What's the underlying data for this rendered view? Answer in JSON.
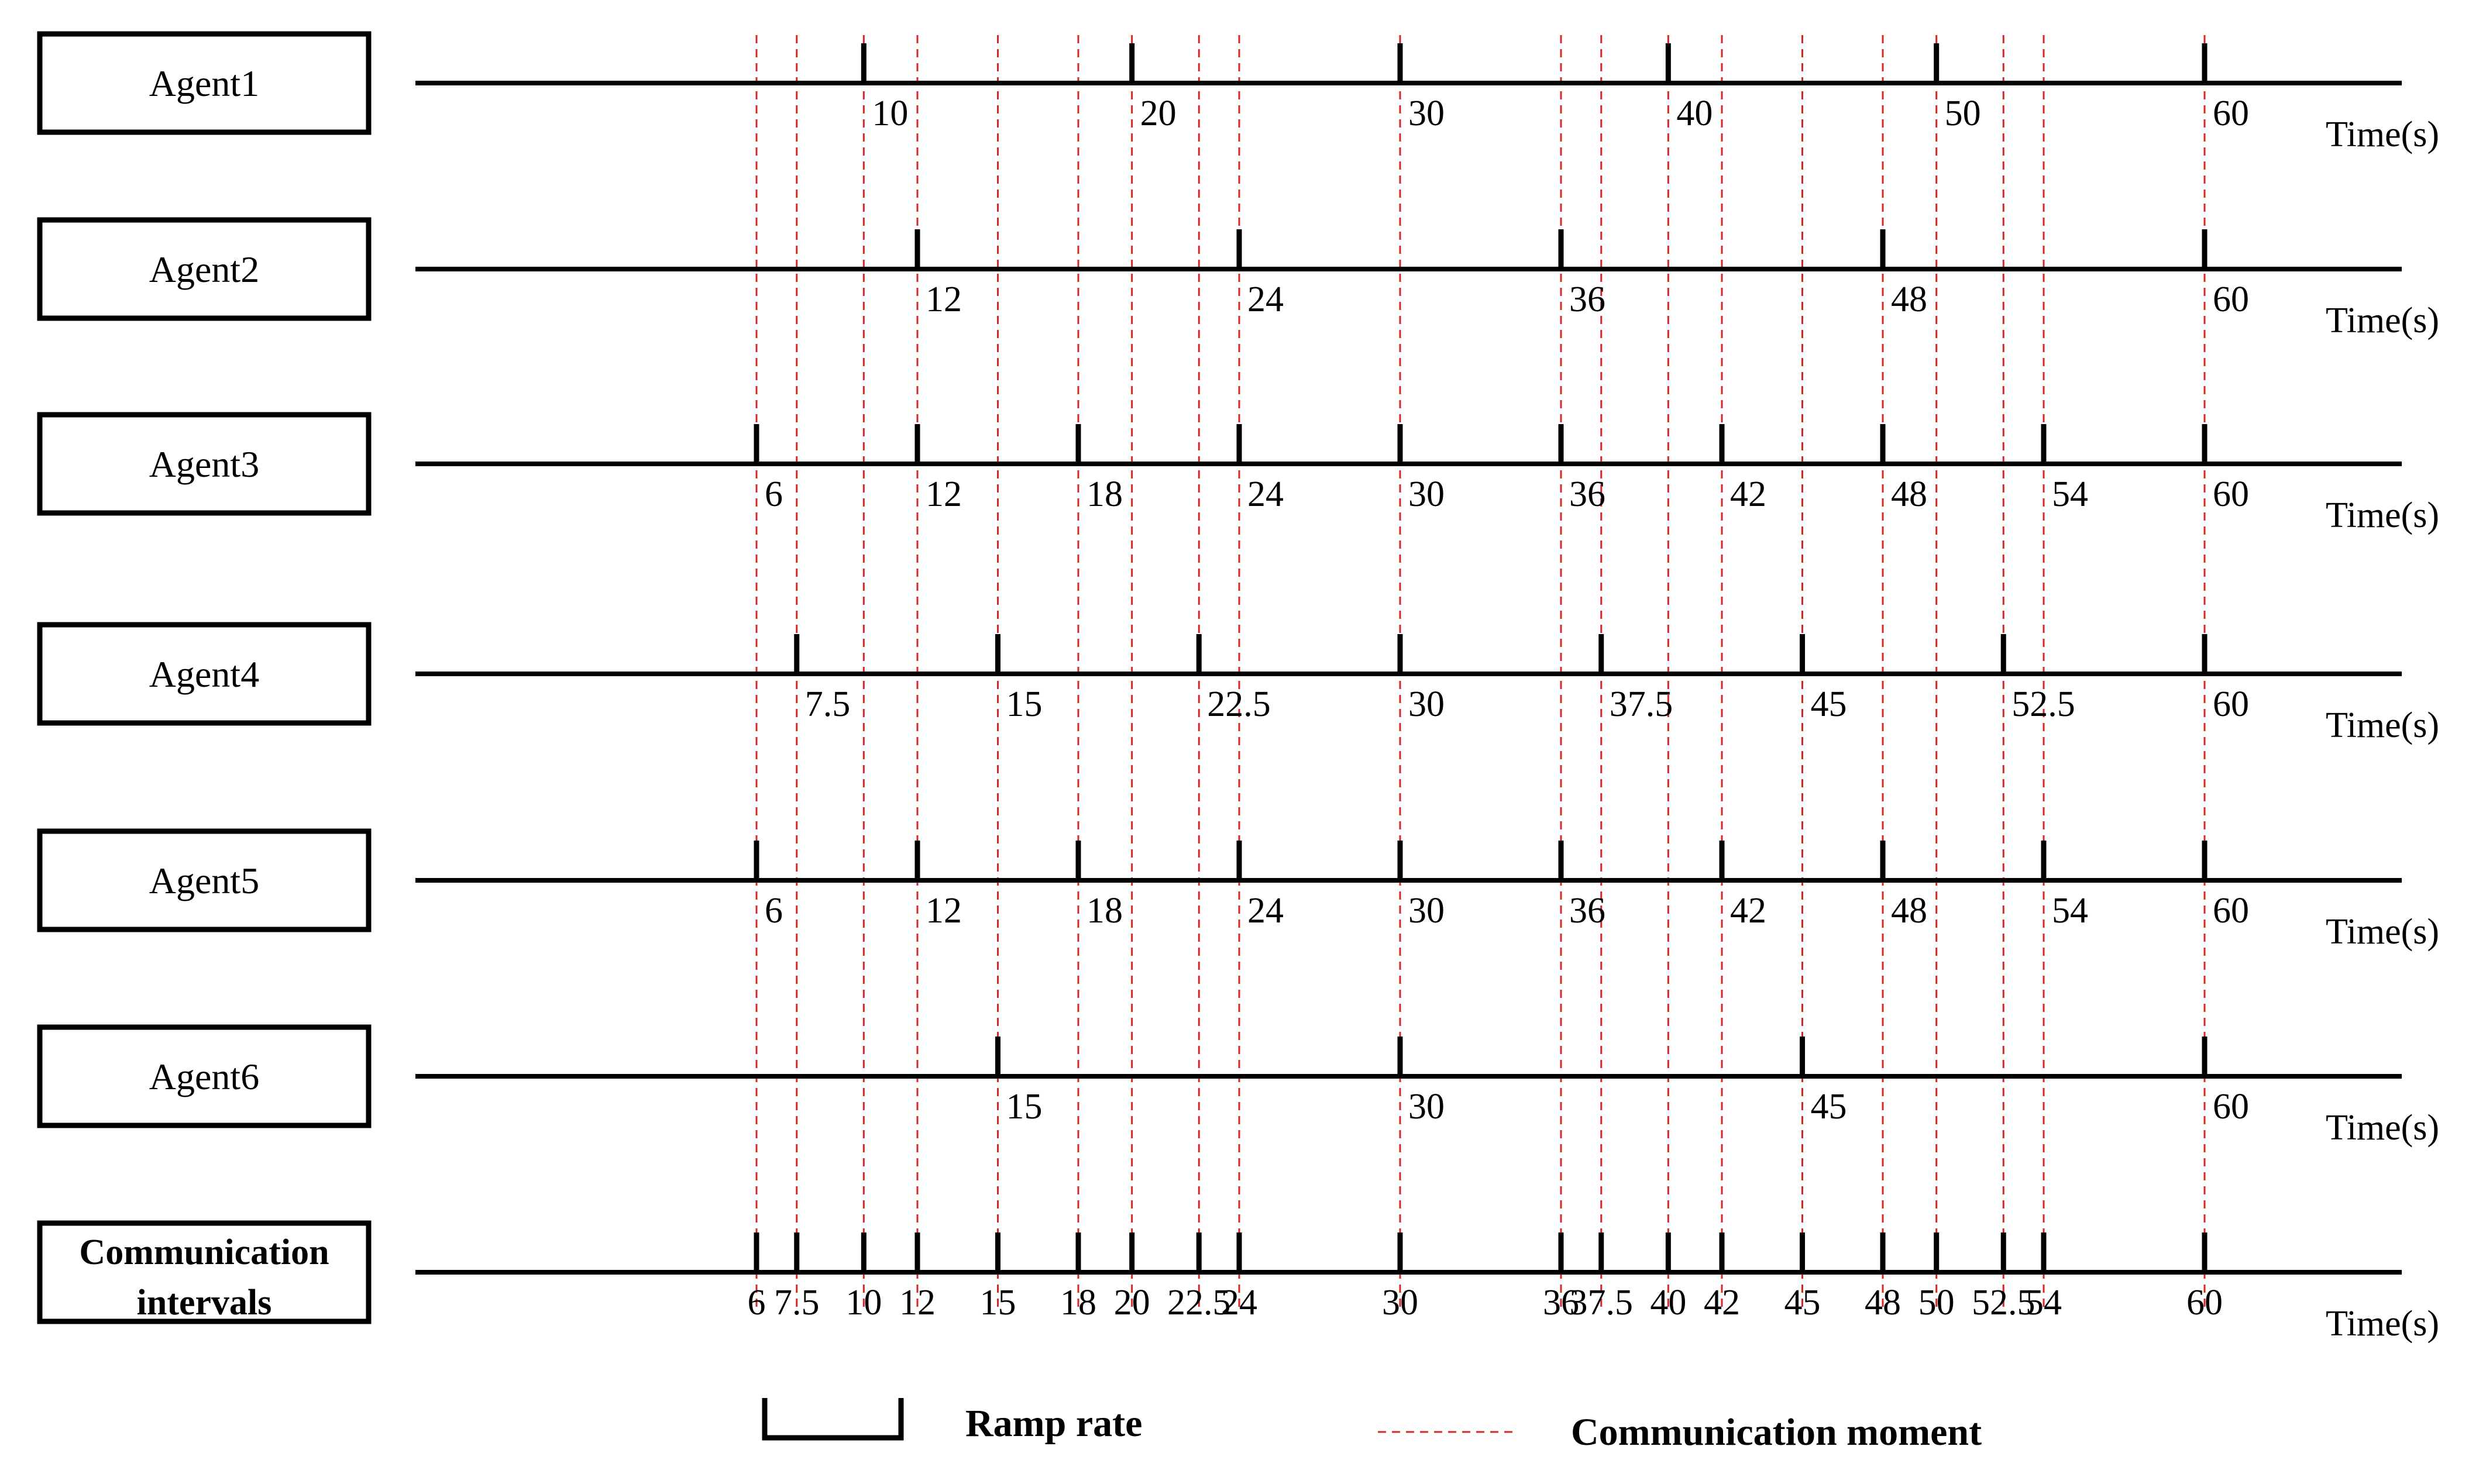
{
  "axis": {
    "unit_label": "Time(s)",
    "max_value": 60
  },
  "guides": [
    6,
    7.5,
    10,
    12,
    15,
    18,
    20,
    22.5,
    24,
    30,
    36,
    37.5,
    40,
    42,
    45,
    48,
    50,
    52.5,
    54,
    60
  ],
  "rows": [
    {
      "id": "agent1",
      "label": "Agent1",
      "ticks": [
        10,
        20,
        30,
        40,
        50,
        60
      ],
      "tick_labels": [
        "10",
        "20",
        "30",
        "40",
        "50",
        "60"
      ]
    },
    {
      "id": "agent2",
      "label": "Agent2",
      "ticks": [
        12,
        24,
        36,
        48,
        60
      ],
      "tick_labels": [
        "12",
        "24",
        "36",
        "48",
        "60"
      ]
    },
    {
      "id": "agent3",
      "label": "Agent3",
      "ticks": [
        6,
        12,
        18,
        24,
        30,
        36,
        42,
        48,
        54,
        60
      ],
      "tick_labels": [
        "6",
        "12",
        "18",
        "24",
        "30",
        "36",
        "42",
        "48",
        "54",
        "60"
      ]
    },
    {
      "id": "agent4",
      "label": "Agent4",
      "ticks": [
        7.5,
        15,
        22.5,
        30,
        37.5,
        45,
        52.5,
        60
      ],
      "tick_labels": [
        "7.5",
        "15",
        "22.5",
        "30",
        "37.5",
        "45",
        "52.5",
        "60"
      ]
    },
    {
      "id": "agent5",
      "label": "Agent5",
      "ticks": [
        6,
        12,
        18,
        24,
        30,
        36,
        42,
        48,
        54,
        60
      ],
      "tick_labels": [
        "6",
        "12",
        "18",
        "24",
        "30",
        "36",
        "42",
        "48",
        "54",
        "60"
      ]
    },
    {
      "id": "agent6",
      "label": "Agent6",
      "ticks": [
        15,
        30,
        45,
        60
      ],
      "tick_labels": [
        "15",
        "30",
        "45",
        "60"
      ]
    },
    {
      "id": "communication",
      "label_lines": [
        "Communication",
        "intervals"
      ],
      "ticks": [
        6,
        7.5,
        10,
        12,
        15,
        18,
        20,
        22.5,
        24,
        30,
        36,
        37.5,
        40,
        42,
        45,
        48,
        50,
        52.5,
        54,
        60
      ],
      "tick_labels": [
        "6",
        "7.5",
        "10",
        "12",
        "15",
        "18",
        "20",
        "22.5",
        "24",
        "30",
        "36",
        "37.5",
        "40",
        "42",
        "45",
        "48",
        "50",
        "52.5",
        "54",
        "60"
      ]
    }
  ],
  "legend": {
    "ramp_rate": "Ramp rate",
    "communication_moment": "Communication moment"
  },
  "colors": {
    "guide_line": "#d62728",
    "axis": "#000000"
  }
}
